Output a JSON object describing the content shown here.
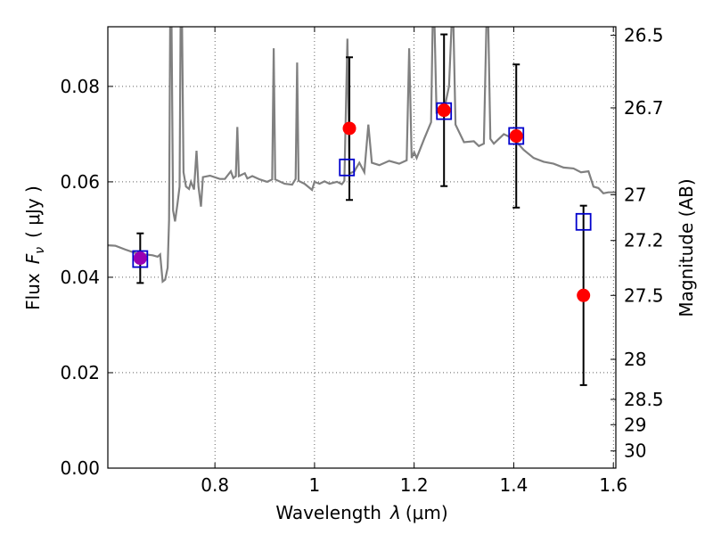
{
  "chart_data": {
    "type": "scatter",
    "xlabel_prefix": "Wavelength",
    "xlabel_symbol": "λ",
    "xlabel_unit": "(μm)",
    "ylabel_prefix": "Flux",
    "ylabel_symbol": "F",
    "ylabel_subscript": "ν",
    "ylabel_unit": "( μJy )",
    "y2label": "Magnitude (AB)",
    "xlim": [
      0.585,
      1.605
    ],
    "ylim": [
      0.0,
      0.0925
    ],
    "grid": true,
    "xticks": [
      0.8,
      1.0,
      1.2,
      1.4,
      1.6
    ],
    "xtick_labels": [
      "0.8",
      "1",
      "1.2",
      "1.4",
      "1.6"
    ],
    "yticks": [
      0.0,
      0.02,
      0.04,
      0.06,
      0.08
    ],
    "ytick_labels": [
      "0.00",
      "0.02",
      "0.04",
      "0.06",
      "0.08"
    ],
    "y2ticks": [
      {
        "label": "26.5",
        "flux": 0.0907
      },
      {
        "label": "26.7",
        "flux": 0.0755
      },
      {
        "label": "27",
        "flux": 0.0573
      },
      {
        "label": "27.2",
        "flux": 0.0477
      },
      {
        "label": "27.5",
        "flux": 0.0362
      },
      {
        "label": "28",
        "flux": 0.0228
      },
      {
        "label": "28.5",
        "flux": 0.0144
      },
      {
        "label": "29",
        "flux": 0.0091
      },
      {
        "label": "30",
        "flux": 0.0036
      }
    ],
    "series": [
      {
        "role": "model_spectrum",
        "style": "line",
        "color": "#808080",
        "points": [
          [
            0.585,
            0.0467
          ],
          [
            0.6,
            0.0466
          ],
          [
            0.62,
            0.0458
          ],
          [
            0.64,
            0.0451
          ],
          [
            0.66,
            0.0448
          ],
          [
            0.675,
            0.0446
          ],
          [
            0.685,
            0.0443
          ],
          [
            0.69,
            0.0448
          ],
          [
            0.695,
            0.0391
          ],
          [
            0.7,
            0.0395
          ],
          [
            0.705,
            0.042
          ],
          [
            0.708,
            0.052
          ],
          [
            0.71,
            0.0925
          ],
          [
            0.713,
            0.0925
          ],
          [
            0.716,
            0.054
          ],
          [
            0.72,
            0.0517
          ],
          [
            0.725,
            0.0555
          ],
          [
            0.729,
            0.059
          ],
          [
            0.731,
            0.0925
          ],
          [
            0.734,
            0.0925
          ],
          [
            0.737,
            0.062
          ],
          [
            0.742,
            0.059
          ],
          [
            0.748,
            0.0585
          ],
          [
            0.752,
            0.06
          ],
          [
            0.758,
            0.0584
          ],
          [
            0.763,
            0.0665
          ],
          [
            0.767,
            0.059
          ],
          [
            0.772,
            0.0548
          ],
          [
            0.776,
            0.061
          ],
          [
            0.79,
            0.0613
          ],
          [
            0.81,
            0.0606
          ],
          [
            0.82,
            0.0606
          ],
          [
            0.832,
            0.0622
          ],
          [
            0.837,
            0.0608
          ],
          [
            0.842,
            0.0612
          ],
          [
            0.845,
            0.0715
          ],
          [
            0.848,
            0.0612
          ],
          [
            0.86,
            0.0618
          ],
          [
            0.865,
            0.0607
          ],
          [
            0.875,
            0.0612
          ],
          [
            0.89,
            0.0605
          ],
          [
            0.905,
            0.06
          ],
          [
            0.915,
            0.0605
          ],
          [
            0.918,
            0.088
          ],
          [
            0.921,
            0.0605
          ],
          [
            0.94,
            0.0596
          ],
          [
            0.955,
            0.0594
          ],
          [
            0.962,
            0.0606
          ],
          [
            0.965,
            0.085
          ],
          [
            0.968,
            0.0602
          ],
          [
            0.98,
            0.0596
          ],
          [
            0.995,
            0.0583
          ],
          [
            1.0,
            0.06
          ],
          [
            1.01,
            0.0596
          ],
          [
            1.02,
            0.0601
          ],
          [
            1.03,
            0.0596
          ],
          [
            1.045,
            0.06
          ],
          [
            1.055,
            0.0595
          ],
          [
            1.06,
            0.0602
          ],
          [
            1.066,
            0.09
          ],
          [
            1.07,
            0.0617
          ],
          [
            1.08,
            0.0622
          ],
          [
            1.09,
            0.064
          ],
          [
            1.1,
            0.062
          ],
          [
            1.108,
            0.072
          ],
          [
            1.115,
            0.064
          ],
          [
            1.13,
            0.0635
          ],
          [
            1.15,
            0.0644
          ],
          [
            1.17,
            0.0638
          ],
          [
            1.185,
            0.0645
          ],
          [
            1.19,
            0.088
          ],
          [
            1.195,
            0.065
          ],
          [
            1.2,
            0.0662
          ],
          [
            1.205,
            0.065
          ],
          [
            1.22,
            0.069
          ],
          [
            1.234,
            0.0725
          ],
          [
            1.237,
            0.0925
          ],
          [
            1.241,
            0.0925
          ],
          [
            1.245,
            0.0745
          ],
          [
            1.26,
            0.075
          ],
          [
            1.27,
            0.08
          ],
          [
            1.275,
            0.0925
          ],
          [
            1.279,
            0.0925
          ],
          [
            1.283,
            0.072
          ],
          [
            1.3,
            0.0683
          ],
          [
            1.32,
            0.0685
          ],
          [
            1.33,
            0.0675
          ],
          [
            1.34,
            0.068
          ],
          [
            1.345,
            0.0925
          ],
          [
            1.349,
            0.0925
          ],
          [
            1.353,
            0.069
          ],
          [
            1.36,
            0.068
          ],
          [
            1.38,
            0.07
          ],
          [
            1.4,
            0.069
          ],
          [
            1.42,
            0.0667
          ],
          [
            1.44,
            0.065
          ],
          [
            1.46,
            0.0642
          ],
          [
            1.48,
            0.0638
          ],
          [
            1.5,
            0.063
          ],
          [
            1.52,
            0.0628
          ],
          [
            1.535,
            0.062
          ],
          [
            1.55,
            0.0622
          ],
          [
            1.56,
            0.059
          ],
          [
            1.57,
            0.0587
          ],
          [
            1.58,
            0.0576
          ],
          [
            1.59,
            0.0578
          ],
          [
            1.605,
            0.0578
          ]
        ]
      },
      {
        "role": "model_photometry",
        "style": "open_square",
        "color": "#0000cc",
        "x": [
          0.65,
          1.065,
          1.26,
          1.405,
          1.54
        ],
        "y": [
          0.044,
          0.0632,
          0.075,
          0.0698,
          0.0518
        ]
      },
      {
        "role": "observed_photometry",
        "style": "filled_circle_errorbar",
        "color": "#ff0000",
        "x": [
          0.65,
          1.07,
          1.26,
          1.405,
          1.54
        ],
        "y": [
          0.044,
          0.0712,
          0.075,
          0.0696,
          0.0362
        ],
        "yerr_low": [
          0.0052,
          0.015,
          0.0159,
          0.015,
          0.0188
        ],
        "yerr_high": [
          0.0052,
          0.0149,
          0.0159,
          0.015,
          0.0188
        ]
      }
    ]
  }
}
